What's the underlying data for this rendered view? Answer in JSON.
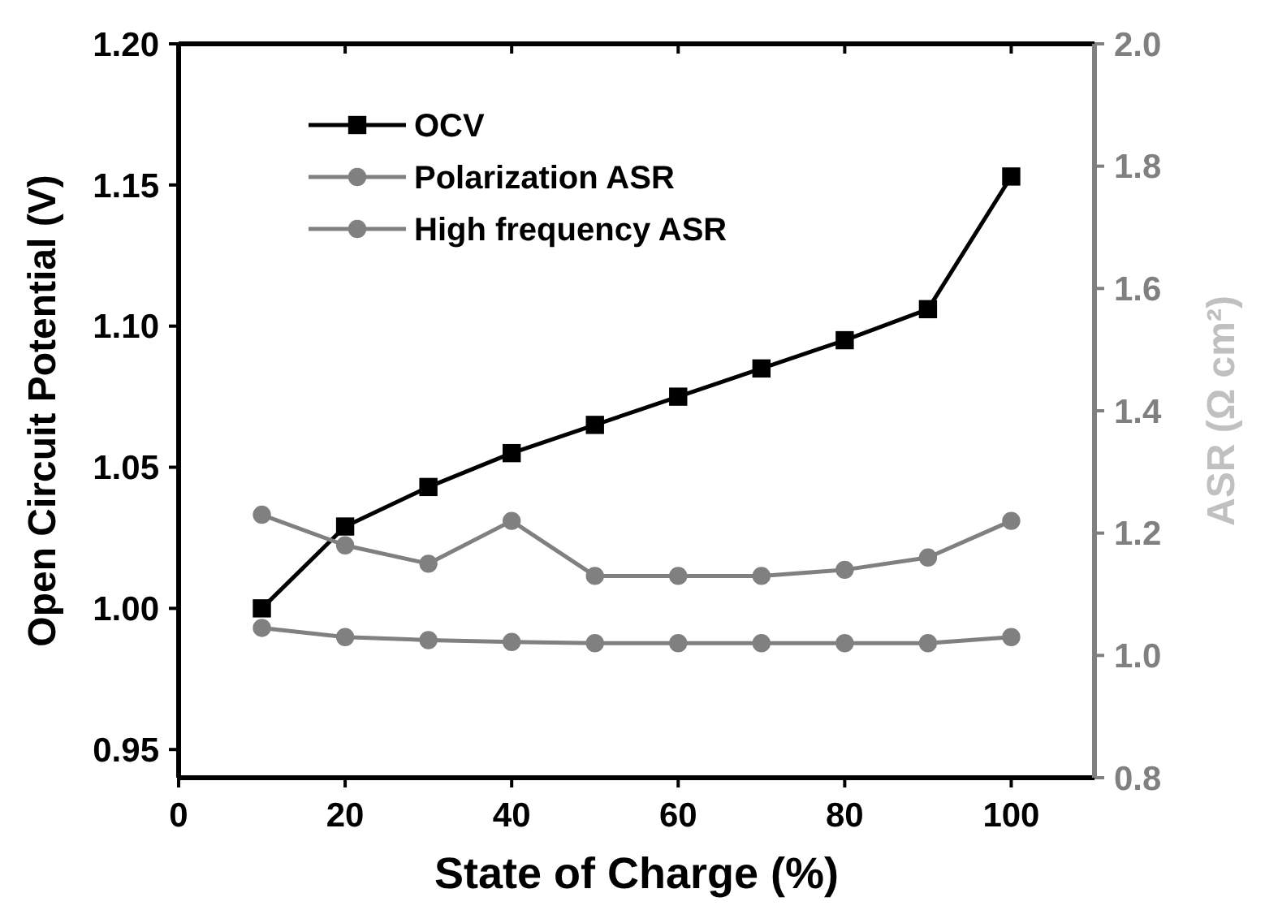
{
  "chart_data": {
    "type": "line",
    "xlabel": "State of Charge (%)",
    "ylabel": "Open Circuit Potential (V)",
    "y2label": "ASR (Ω cm²)",
    "x": [
      10,
      20,
      30,
      40,
      50,
      60,
      70,
      80,
      90,
      100
    ],
    "series": [
      {
        "name": "OCV",
        "color": "#000000",
        "marker": "square",
        "values": [
          1.0,
          1.029,
          1.043,
          1.055,
          1.065,
          1.075,
          1.085,
          1.095,
          1.106,
          1.153
        ]
      },
      {
        "name": "Polarization ASR",
        "color": "#808080",
        "marker": "circle",
        "axis": "y2",
        "values": [
          1.23,
          1.18,
          1.15,
          1.22,
          1.13,
          1.13,
          1.13,
          1.14,
          1.16,
          1.22
        ]
      },
      {
        "name": "High frequency ASR",
        "color": "#808080",
        "marker": "circle",
        "axis": "y2",
        "values": [
          1.045,
          1.03,
          1.025,
          1.022,
          1.02,
          1.02,
          1.02,
          1.02,
          1.02,
          1.03
        ]
      }
    ],
    "xlim": [
      0,
      110
    ],
    "xticks": [
      0,
      20,
      40,
      60,
      80,
      100
    ],
    "ylim": [
      0.94,
      1.2
    ],
    "yticks": [
      0.95,
      {
        "value": 1,
        "label": "1.00"
      },
      1.05,
      {
        "value": 1.1,
        "label": "1.10"
      },
      1.15,
      {
        "value": 1.2,
        "label": "1.20"
      }
    ],
    "y2lim": [
      0.8,
      2.0
    ],
    "y2ticks": [
      0.8,
      {
        "value": 1,
        "label": "1.0"
      },
      1.2,
      1.4,
      1.6,
      1.8,
      {
        "value": 2,
        "label": "2.0"
      }
    ],
    "legend": "top left",
    "grid": false,
    "line_style": "solid"
  }
}
